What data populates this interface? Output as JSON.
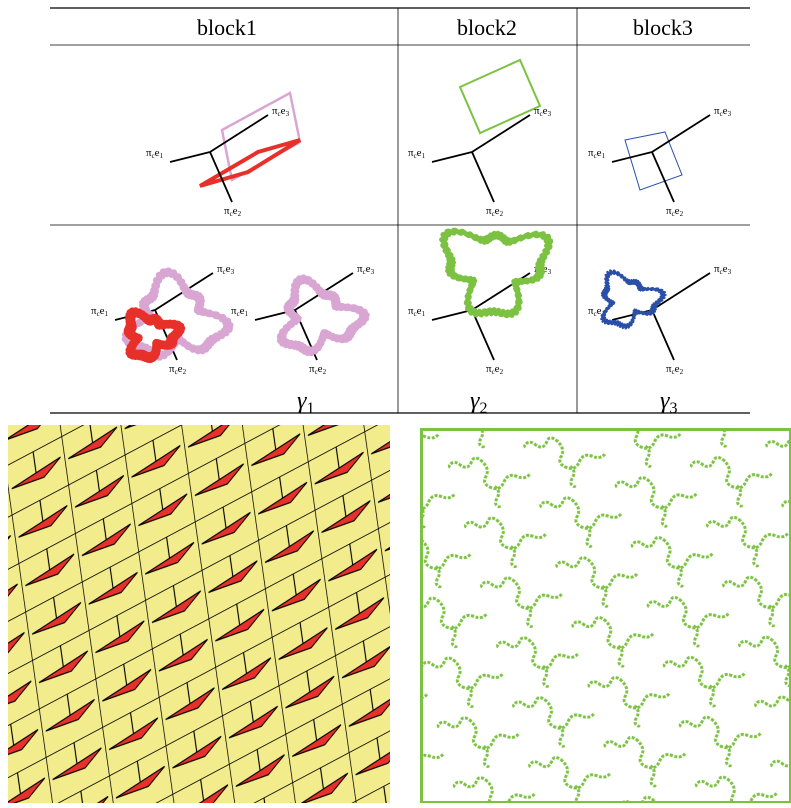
{
  "header": {
    "columns": [
      "block1",
      "block2",
      "block3"
    ]
  },
  "projection": {
    "symbol": "π",
    "subscript": "c",
    "vector": "e"
  },
  "indices": [
    "1",
    "2",
    "3"
  ],
  "gamma": {
    "symbol": "γ"
  }
}
